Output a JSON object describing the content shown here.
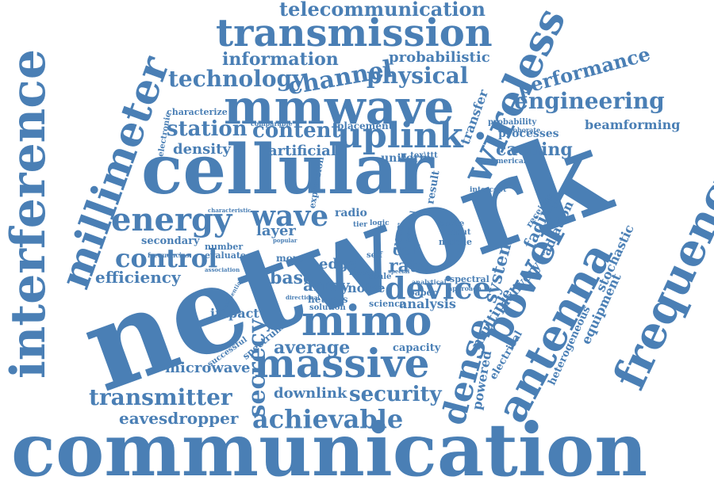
{
  "color": "#4a7fb5",
  "words": [
    {
      "text": "communication"
    },
    {
      "text": "network"
    },
    {
      "text": "cellular"
    },
    {
      "text": "interference"
    },
    {
      "text": "millimeter"
    },
    {
      "text": "mmwave"
    },
    {
      "text": "transmission"
    },
    {
      "text": "wireless"
    },
    {
      "text": "frequency"
    },
    {
      "text": "antenna"
    },
    {
      "text": "power"
    },
    {
      "text": "massive"
    },
    {
      "text": "mimo"
    },
    {
      "text": "uplink"
    },
    {
      "text": "energy"
    },
    {
      "text": "wave"
    },
    {
      "text": "device"
    },
    {
      "text": "dense"
    },
    {
      "text": "channel"
    },
    {
      "text": "technology"
    },
    {
      "text": "telecommunication"
    },
    {
      "text": "information"
    },
    {
      "text": "probabilistic"
    },
    {
      "text": "physical"
    },
    {
      "text": "performance"
    },
    {
      "text": "engineering"
    },
    {
      "text": "beamforming"
    },
    {
      "text": "station"
    },
    {
      "text": "content"
    },
    {
      "text": "density"
    },
    {
      "text": "artificial"
    },
    {
      "text": "control"
    },
    {
      "text": "efficiency"
    },
    {
      "text": "transmitter"
    },
    {
      "text": "security"
    },
    {
      "text": "achievable"
    },
    {
      "text": "secrecy"
    },
    {
      "text": "average"
    },
    {
      "text": "microwave"
    },
    {
      "text": "eavesdropper"
    },
    {
      "text": "downlink"
    },
    {
      "text": "caching"
    },
    {
      "text": "processes"
    },
    {
      "text": "layer"
    },
    {
      "text": "base"
    },
    {
      "text": "array"
    },
    {
      "text": "edge"
    },
    {
      "text": "rate"
    },
    {
      "text": "cell"
    },
    {
      "text": "noise"
    },
    {
      "text": "analysis"
    },
    {
      "text": "system"
    },
    {
      "text": "multiple"
    },
    {
      "text": "delivery"
    },
    {
      "text": "powered"
    },
    {
      "text": "fading"
    },
    {
      "text": "radiation"
    },
    {
      "text": "transfer"
    },
    {
      "text": "stochastic"
    },
    {
      "text": "heterogeneous"
    },
    {
      "text": "equipment"
    },
    {
      "text": "electrical"
    },
    {
      "text": "capacity"
    },
    {
      "text": "impact"
    },
    {
      "text": "secondary"
    },
    {
      "text": "spectrum"
    },
    {
      "text": "successful"
    },
    {
      "text": "hetnets"
    },
    {
      "text": "radio"
    },
    {
      "text": "uniform"
    },
    {
      "text": "result"
    },
    {
      "text": "user"
    },
    {
      "text": "spectral"
    },
    {
      "text": "mobile"
    },
    {
      "text": "cache"
    },
    {
      "text": "output"
    },
    {
      "text": "receiver"
    },
    {
      "text": "tier"
    },
    {
      "text": "placement"
    },
    {
      "text": "probability"
    },
    {
      "text": "corroborate"
    },
    {
      "text": "numerical"
    },
    {
      "text": "intercept"
    },
    {
      "text": "characterize"
    },
    {
      "text": "electronic"
    },
    {
      "text": "comparable"
    },
    {
      "text": "more"
    },
    {
      "text": "linear"
    },
    {
      "text": "scale"
    },
    {
      "text": "science"
    },
    {
      "text": "solution"
    },
    {
      "text": "paper"
    },
    {
      "text": "number"
    },
    {
      "text": "evaluate"
    },
    {
      "text": "frequencies"
    },
    {
      "text": "expression"
    },
    {
      "text": "n_tex\\ttt"
    },
    {
      "text": "self"
    },
    {
      "text": "logic"
    },
    {
      "text": "potential"
    },
    {
      "text": "confidential"
    },
    {
      "text": "association"
    },
    {
      "text": "analytical"
    },
    {
      "text": "approach"
    },
    {
      "text": "characteristic"
    },
    {
      "text": "popular"
    },
    {
      "text": "directional"
    },
    {
      "text": "special"
    }
  ]
}
